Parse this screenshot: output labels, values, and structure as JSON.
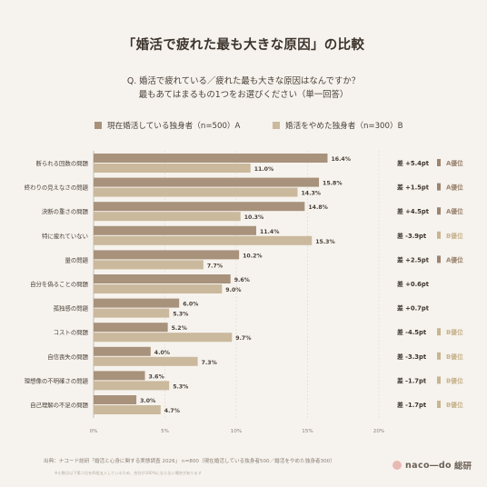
{
  "title": "「婚活で疲れた最も大きな原因」の比較",
  "question": {
    "line1": "Q. 婚活で疲れている／疲れた最も大きな原因はなんですか？",
    "line2": "最もあてはまるもの1つをお選びください（単一回答）"
  },
  "colors": {
    "a": "#a8927c",
    "b": "#cbb99d",
    "text": "#4a4038",
    "grid": "#dcd6cf",
    "a_badge": "#9c8470",
    "b_badge": "#c8b48e"
  },
  "chart_data": {
    "type": "bar",
    "orientation": "horizontal",
    "categories": [
      "断られる回数の問題",
      "終わりの見えなさの問題",
      "決断の重さの問題",
      "特に疲れていない",
      "量の問題",
      "自分を偽ることの問題",
      "孤独感の問題",
      "コストの問題",
      "自信喪失の問題",
      "理想像の不明確さの問題",
      "自己理解の不足の問題"
    ],
    "series": [
      {
        "name": "現在婚活している独身者（n=500）A",
        "values": [
          16.4,
          15.8,
          14.8,
          11.4,
          10.2,
          9.6,
          6.0,
          5.2,
          4.0,
          3.6,
          3.0
        ]
      },
      {
        "name": "婚活をやめた独身者（n=300）B",
        "values": [
          11.0,
          14.3,
          10.3,
          15.3,
          7.7,
          9.0,
          5.3,
          9.7,
          7.3,
          5.3,
          4.7
        ]
      }
    ],
    "value_labels": {
      "a": [
        "16.4%",
        "15.8%",
        "14.8%",
        "11.4%",
        "10.2%",
        "9.6%",
        "6.0%",
        "5.2%",
        "4.0%",
        "3.6%",
        "3.0%"
      ],
      "b": [
        "11.0%",
        "14.3%",
        "10.3%",
        "15.3%",
        "7.7%",
        "9.0%",
        "5.3%",
        "9.7%",
        "7.3%",
        "5.3%",
        "4.7%"
      ]
    },
    "differences": [
      "差 +5.4pt",
      "差 +1.5pt",
      "差 +4.5pt",
      "差 -3.9pt",
      "差 +2.5pt",
      "差 +0.6pt",
      "差 +0.7pt",
      "差 -4.5pt",
      "差 -3.3pt",
      "差 -1.7pt",
      "差 -1.7pt"
    ],
    "badges": [
      "A優位",
      "A優位",
      "A優位",
      "B優位",
      "A優位",
      "",
      "",
      "B優位",
      "B優位",
      "B優位",
      "B優位"
    ],
    "badge_series": [
      "a",
      "a",
      "a",
      "b",
      "a",
      "",
      "",
      "b",
      "b",
      "b",
      "b"
    ],
    "xlim": [
      0,
      20
    ],
    "xticks": [
      0,
      5,
      10,
      15,
      20
    ],
    "xtick_labels": [
      "0%",
      "5%",
      "10%",
      "15%",
      "20%"
    ],
    "grid": true,
    "legend": "top"
  },
  "footer": {
    "source": "出典：ナコード総研「婚活と心身に関する実態調査 2026」 n=800（現在婚活している独身者500／婚活をやめた独身者300）",
    "note": "※小数点以下第二位を四捨五入しているため、合計が100%にならない場合があります",
    "brand_name": "naco―do",
    "brand_sub": "総研"
  }
}
